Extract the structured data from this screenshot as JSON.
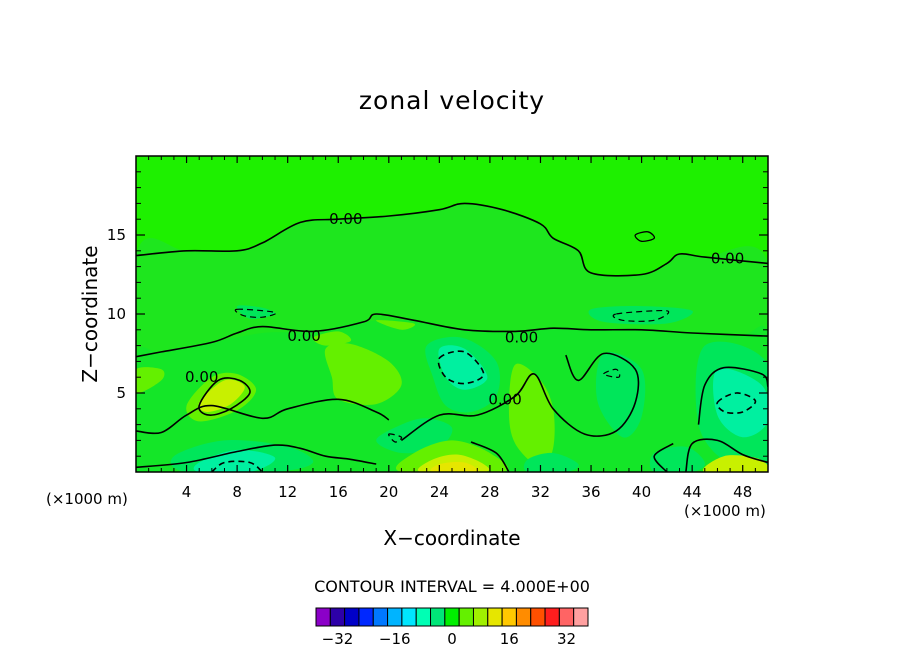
{
  "chart_data": {
    "type": "heatmap",
    "subtype": "filled-contour",
    "title": "zonal velocity",
    "xlabel": "X−coordinate",
    "ylabel": "Z−coordinate",
    "x_unit_left": "(×1000 m)",
    "x_unit_right": "(×1000 m)",
    "xlim": [
      0,
      50
    ],
    "ylim": [
      0,
      20
    ],
    "x_ticks": [
      4,
      8,
      12,
      16,
      20,
      24,
      28,
      32,
      36,
      40,
      44,
      48
    ],
    "y_ticks": [
      5,
      10,
      15
    ],
    "contour_interval_label": "CONTOUR INTERVAL = 4.000E+00",
    "contour_labels": [
      {
        "text": "0.00",
        "x": 16.6,
        "z": 16.0
      },
      {
        "text": "0.00",
        "x": 46.8,
        "z": 13.5
      },
      {
        "text": "0.00",
        "x": 13.3,
        "z": 8.6
      },
      {
        "text": "0.00",
        "x": 30.5,
        "z": 8.5
      },
      {
        "text": "0.00",
        "x": 5.2,
        "z": 6.0
      },
      {
        "text": "0.00",
        "x": 29.2,
        "z": 4.6
      }
    ],
    "colorbar": {
      "colors": [
        "#8b00c8",
        "#2d00a8",
        "#0000c8",
        "#0028ff",
        "#0078ff",
        "#00b4ff",
        "#00e6ff",
        "#00ffb4",
        "#00e678",
        "#00f000",
        "#64f000",
        "#a0f000",
        "#e6e600",
        "#ffc800",
        "#ff8c00",
        "#ff5000",
        "#ff1e1e",
        "#ff6464",
        "#ffa0a0"
      ],
      "tick_labels": [
        "−32",
        "−16",
        "0",
        "16",
        "32"
      ],
      "tick_values": [
        -32,
        -16,
        0,
        16,
        32
      ]
    },
    "background_level_color": "#1ef000",
    "positive_fill": "#64f000",
    "negative_fill": "#00e65a",
    "strong_negative_fill": "#00f0a0",
    "strong_positive_fill": "#c8f000",
    "peak_positive_fill": "#e6e600"
  }
}
